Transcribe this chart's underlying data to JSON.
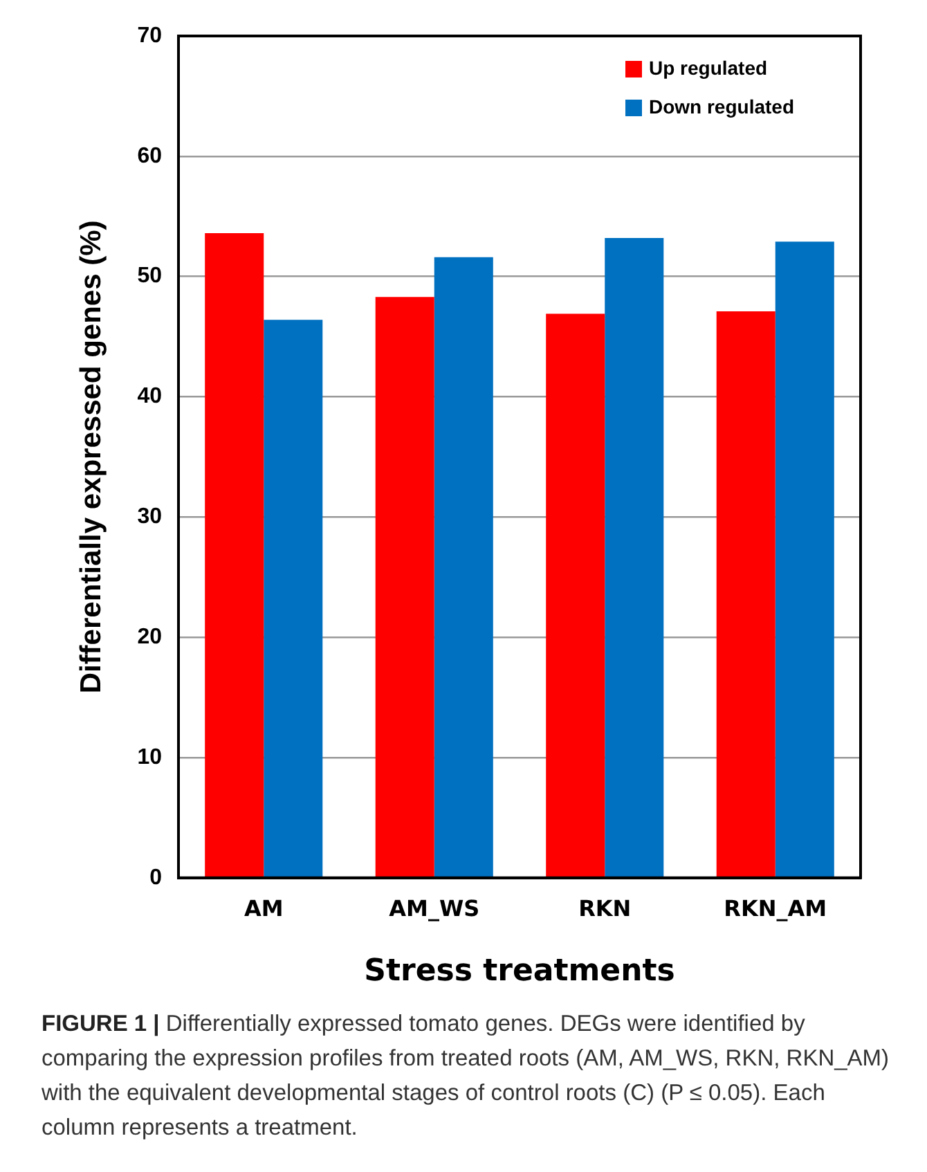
{
  "chart_data": {
    "type": "bar",
    "categories": [
      "AM",
      "AM_WS",
      "RKN",
      "RKN_AM"
    ],
    "series": [
      {
        "name": "Up regulated",
        "color": "#ff0000",
        "values": [
          53.6,
          48.3,
          46.9,
          47.1
        ]
      },
      {
        "name": "Down regulated",
        "color": "#0070c0",
        "values": [
          46.4,
          51.6,
          53.2,
          52.9
        ]
      }
    ],
    "xlabel": "Stress treatments",
    "ylabel": "Differentially expressed genes (%)",
    "ylim": [
      0,
      70
    ],
    "yticks": [
      0,
      10,
      20,
      30,
      40,
      50,
      60,
      70
    ],
    "grid": "y",
    "legend": "top right",
    "annotations": [
      "FIGURE 1 |",
      "Differentially expressed tomato genes. DEGs were identified by comparing the expression profiles from treated roots (AM, AM_WS, RKN, RKN_AM) with the equivalent developmental stages of control roots (C) (P ≤ 0.05). Each column represents a treatment."
    ]
  }
}
